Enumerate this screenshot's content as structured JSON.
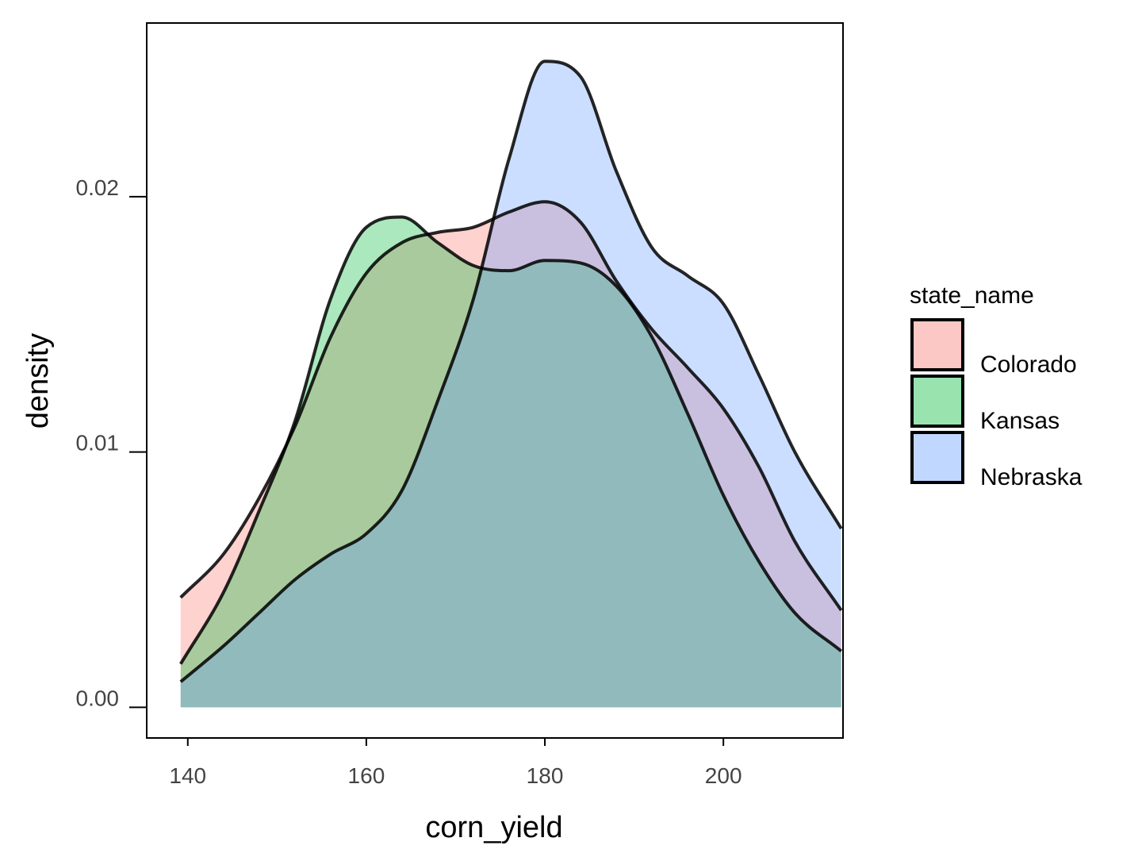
{
  "chart_data": {
    "type": "area",
    "subtype": "density",
    "title": "",
    "xlabel": "corn_yield",
    "ylabel": "density",
    "xlim": [
      135.4,
      213.4
    ],
    "ylim": [
      -0.0012,
      0.0268
    ],
    "x_ticks": [
      140,
      160,
      180,
      200
    ],
    "y_ticks": [
      0.0,
      0.01,
      0.02
    ],
    "x_tick_labels": [
      "140",
      "160",
      "180",
      "200"
    ],
    "y_tick_labels": [
      "0.00",
      "0.01",
      "0.02"
    ],
    "grid": false,
    "legend": {
      "title": "state_name",
      "position": "right"
    },
    "series": [
      {
        "name": "Colorado",
        "fill": "#F8766D",
        "stroke": "#000000",
        "x": [
          139.2,
          144,
          148,
          152,
          156,
          160,
          164,
          168,
          172,
          176,
          180,
          184,
          188,
          192,
          196,
          200,
          204,
          208,
          213.2
        ],
        "y": [
          0.0043,
          0.006,
          0.0082,
          0.011,
          0.0145,
          0.017,
          0.0182,
          0.0186,
          0.0188,
          0.0194,
          0.0198,
          0.019,
          0.0167,
          0.0148,
          0.0133,
          0.0117,
          0.0094,
          0.0065,
          0.0038
        ]
      },
      {
        "name": "Kansas",
        "fill": "#00BA38",
        "stroke": "#000000",
        "x": [
          139.2,
          144,
          148,
          152,
          156,
          160,
          164,
          168,
          172,
          176,
          180,
          184,
          188,
          192,
          196,
          200,
          204,
          208,
          213.2
        ],
        "y": [
          0.0017,
          0.0045,
          0.0077,
          0.0112,
          0.016,
          0.0188,
          0.0192,
          0.0182,
          0.0173,
          0.0171,
          0.0175,
          0.0174,
          0.0165,
          0.0145,
          0.0115,
          0.0083,
          0.0057,
          0.0037,
          0.0022
        ]
      },
      {
        "name": "Nebraska",
        "fill": "#619CFF",
        "stroke": "#000000",
        "x": [
          139.2,
          144,
          148,
          152,
          156,
          160,
          164,
          168,
          172,
          176,
          180,
          184,
          188,
          192,
          196,
          200,
          204,
          208,
          213.2
        ],
        "y": [
          0.001,
          0.0024,
          0.0037,
          0.005,
          0.006,
          0.0068,
          0.0085,
          0.012,
          0.016,
          0.0215,
          0.0253,
          0.0247,
          0.021,
          0.018,
          0.0169,
          0.0158,
          0.013,
          0.01,
          0.007
        ]
      }
    ]
  }
}
